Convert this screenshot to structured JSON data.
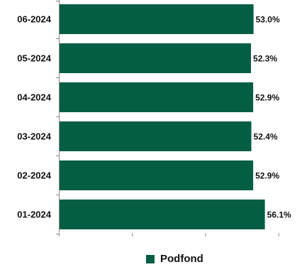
{
  "chart_data": {
    "type": "bar",
    "orientation": "horizontal",
    "categories": [
      "06-2024",
      "05-2024",
      "04-2024",
      "03-2024",
      "02-2024",
      "01-2024"
    ],
    "series": [
      {
        "name": "Podfond",
        "values": [
          53.0,
          52.3,
          52.9,
          52.4,
          52.9,
          56.1
        ]
      }
    ],
    "value_labels": [
      "53.0%",
      "52.3%",
      "52.9%",
      "52.4%",
      "52.9%",
      "56.1%"
    ],
    "xlim": [
      0,
      60
    ],
    "title": "",
    "xlabel": "",
    "ylabel": "",
    "grid": false,
    "legend_position": "bottom"
  },
  "colors": {
    "bar": "#055E43",
    "axis": "#888888"
  }
}
